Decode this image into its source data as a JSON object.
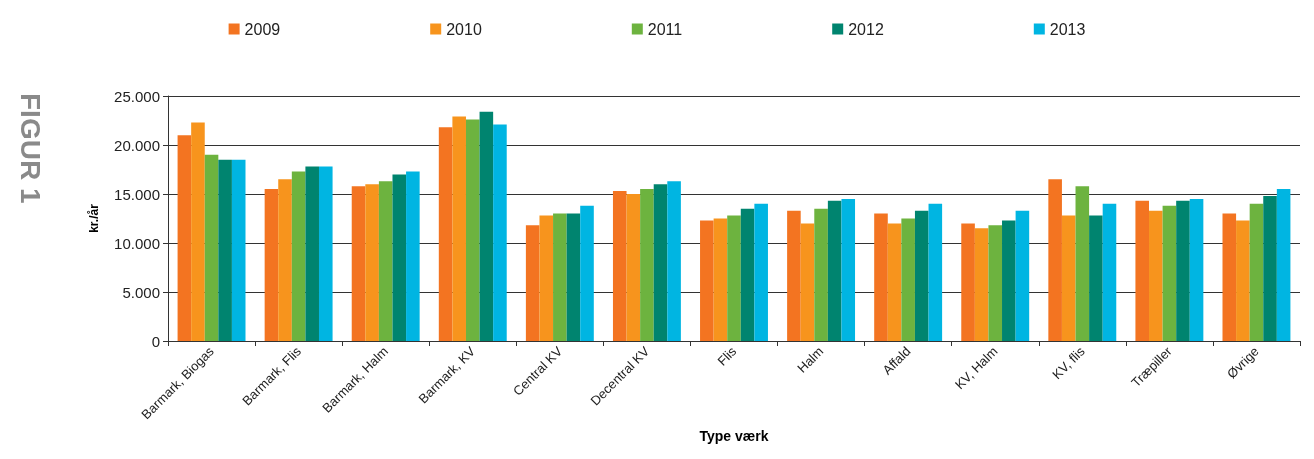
{
  "chart_data": {
    "type": "bar",
    "title": "FIGUR 1",
    "xlabel": "Type værk",
    "ylabel": "kr./år",
    "categories": [
      "Barmark, Biogas",
      "Barmark, Flis",
      "Barmark, Halm",
      "Barmark, KV",
      "Central KV",
      "Decentral KV",
      "Flis",
      "Halm",
      "Affald",
      "KV, Halm",
      "KV, flis",
      "Træpiller",
      "Øvrige"
    ],
    "series": [
      {
        "name": "2009",
        "color": "#f37421",
        "values": [
          21000,
          15500,
          15800,
          21800,
          11800,
          15300,
          12300,
          13300,
          13000,
          12000,
          16500,
          14300,
          13000
        ]
      },
      {
        "name": "2010",
        "color": "#f7941d",
        "values": [
          22300,
          16500,
          16000,
          22900,
          12800,
          15000,
          12500,
          12000,
          12000,
          11500,
          12800,
          13300,
          12300
        ]
      },
      {
        "name": "2011",
        "color": "#6db33f",
        "values": [
          19000,
          17300,
          16300,
          22600,
          13000,
          15500,
          12800,
          13500,
          12500,
          11800,
          15800,
          13800,
          14000
        ]
      },
      {
        "name": "2012",
        "color": "#00846f",
        "values": [
          18500,
          17800,
          17000,
          23400,
          13000,
          16000,
          13500,
          14300,
          13300,
          12300,
          12800,
          14300,
          14800
        ]
      },
      {
        "name": "2013",
        "color": "#00b5e2",
        "values": [
          18500,
          17800,
          17300,
          22100,
          13800,
          16300,
          14000,
          14500,
          14000,
          13300,
          14000,
          14500,
          15500
        ]
      }
    ],
    "ylim": [
      0,
      25000
    ],
    "yticks": [
      {
        "value": 0,
        "label": "0"
      },
      {
        "value": 5000,
        "label": "5.000"
      },
      {
        "value": 10000,
        "label": "10.000"
      },
      {
        "value": 15000,
        "label": "15.000"
      },
      {
        "value": 20000,
        "label": "20.000"
      },
      {
        "value": 25000,
        "label": "25.000"
      }
    ],
    "grid": "y",
    "legend": "top"
  }
}
